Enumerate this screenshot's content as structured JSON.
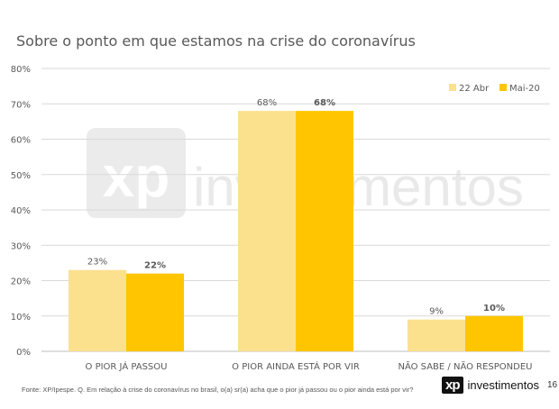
{
  "chart_data": {
    "type": "bar",
    "title": "Sobre o ponto em que estamos na crise do coronavírus",
    "categories": [
      "O PIOR JÁ PASSOU",
      "O PIOR AINDA ESTÁ POR VIR",
      "NÃO SABE / NÃO RESPONDEU"
    ],
    "series": [
      {
        "name": "22 Abr",
        "values": [
          23,
          68,
          9
        ],
        "labels": [
          "23%",
          "68%",
          "9%"
        ],
        "color": "#FBE08E"
      },
      {
        "name": "Mai-20",
        "values": [
          22,
          68,
          10
        ],
        "labels": [
          "22%",
          "68%",
          "10%"
        ],
        "color": "#FFC600"
      }
    ],
    "yticks": [
      "0%",
      "10%",
      "20%",
      "30%",
      "40%",
      "50%",
      "60%",
      "70%",
      "80%"
    ],
    "ylim": [
      0,
      80
    ],
    "grid": true,
    "legend_position": "top-right",
    "watermark": "xp investimentos"
  },
  "footer": {
    "source": "Fonte: XP/Ipespe. Q. Em relação à crise do coronavírus no brasil, o(a) sr(a) acha que o pior já passou ou o pior ainda está por vir?",
    "brand_badge": "xp",
    "brand_text": "investimentos",
    "page_number": "16"
  }
}
